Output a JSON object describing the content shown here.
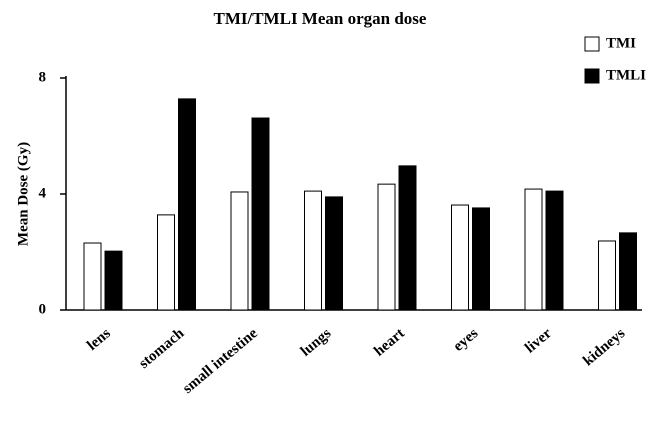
{
  "chart_data": {
    "type": "bar",
    "title": "TMI/TMLI Mean organ dose",
    "y_label": "Mean Dose (Gy)",
    "categories": [
      "lens",
      "stomach",
      "small intestine",
      "lungs",
      "heart",
      "eyes",
      "liver",
      "kidneys"
    ],
    "series": [
      {
        "name": "TMI",
        "color": "#ffffff",
        "values": [
          2.31,
          3.28,
          4.07,
          4.1,
          4.34,
          3.62,
          4.17,
          2.38
        ]
      },
      {
        "name": "TMLI",
        "color": "#000000",
        "values": [
          2.03,
          7.28,
          6.62,
          3.9,
          4.97,
          3.52,
          4.1,
          2.66
        ]
      }
    ],
    "ylim": [
      0,
      8
    ],
    "yticks": [
      0,
      4,
      8
    ],
    "legend": "top-right"
  }
}
